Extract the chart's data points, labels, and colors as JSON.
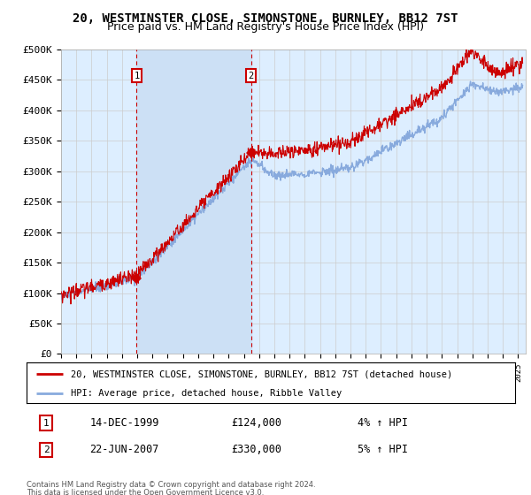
{
  "title": "20, WESTMINSTER CLOSE, SIMONSTONE, BURNLEY, BB12 7ST",
  "subtitle": "Price paid vs. HM Land Registry's House Price Index (HPI)",
  "ylim": [
    0,
    500000
  ],
  "yticks": [
    0,
    50000,
    100000,
    150000,
    200000,
    250000,
    300000,
    350000,
    400000,
    450000,
    500000
  ],
  "ytick_labels": [
    "£0",
    "£50K",
    "£100K",
    "£150K",
    "£200K",
    "£250K",
    "£300K",
    "£350K",
    "£400K",
    "£450K",
    "£500K"
  ],
  "xlim_start": 1995.0,
  "xlim_end": 2025.5,
  "purchase1_x": 1999.96,
  "purchase1_y": 124000,
  "purchase1_label": "1",
  "purchase1_date": "14-DEC-1999",
  "purchase1_price": "£124,000",
  "purchase1_hpi": "4% ↑ HPI",
  "purchase2_x": 2007.47,
  "purchase2_y": 330000,
  "purchase2_label": "2",
  "purchase2_date": "22-JUN-2007",
  "purchase2_price": "£330,000",
  "purchase2_hpi": "5% ↑ HPI",
  "legend_line1": "20, WESTMINSTER CLOSE, SIMONSTONE, BURNLEY, BB12 7ST (detached house)",
  "legend_line2": "HPI: Average price, detached house, Ribble Valley",
  "footer_line1": "Contains HM Land Registry data © Crown copyright and database right 2024.",
  "footer_line2": "This data is licensed under the Open Government Licence v3.0.",
  "line_color_price": "#cc0000",
  "line_color_hpi": "#88aadd",
  "background_color": "#ddeeff",
  "fill_color": "#cce0f5",
  "vline_color": "#cc0000",
  "box_color": "#cc0000",
  "grid_color": "#cccccc",
  "title_fontsize": 10,
  "subtitle_fontsize": 9,
  "label_fontsize": 8.5,
  "tick_fontsize": 8
}
